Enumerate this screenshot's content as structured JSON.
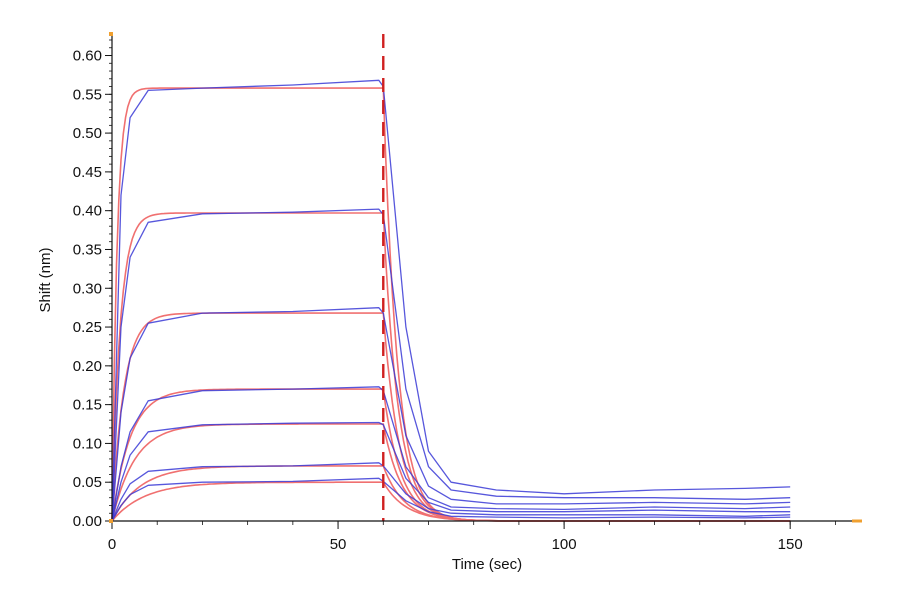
{
  "chart_data": {
    "type": "line",
    "title": "",
    "xlabel": "Time (sec)",
    "ylabel": "Shift (nm)",
    "xlim": [
      0,
      165
    ],
    "ylim": [
      0,
      0.62
    ],
    "x_ticks": [
      0,
      50,
      100,
      150
    ],
    "y_ticks": [
      0.0,
      0.05,
      0.1,
      0.15,
      0.2,
      0.25,
      0.3,
      0.35,
      0.4,
      0.45,
      0.5,
      0.55,
      0.6
    ],
    "dissociation_start": 60,
    "colors": {
      "measured": "#3a3ad6",
      "fit": "#f07070",
      "marker": "#d02020",
      "axis": "#111111",
      "end_mark": "#f0a030"
    },
    "measured": [
      {
        "x": [
          0,
          2,
          4,
          8,
          20,
          40,
          59,
          60,
          65,
          70,
          75,
          85,
          100,
          120,
          140,
          150
        ],
        "y": [
          0,
          0.42,
          0.52,
          0.555,
          0.558,
          0.562,
          0.568,
          0.56,
          0.25,
          0.09,
          0.05,
          0.04,
          0.035,
          0.04,
          0.042,
          0.044
        ]
      },
      {
        "x": [
          0,
          2,
          4,
          8,
          20,
          40,
          59,
          60,
          65,
          70,
          75,
          85,
          100,
          120,
          140,
          150
        ],
        "y": [
          0,
          0.25,
          0.34,
          0.385,
          0.396,
          0.398,
          0.402,
          0.395,
          0.17,
          0.07,
          0.04,
          0.032,
          0.03,
          0.03,
          0.028,
          0.03
        ]
      },
      {
        "x": [
          0,
          2,
          4,
          8,
          20,
          40,
          59,
          60,
          65,
          70,
          75,
          85,
          100,
          120,
          140,
          150
        ],
        "y": [
          0,
          0.14,
          0.21,
          0.255,
          0.268,
          0.27,
          0.275,
          0.268,
          0.11,
          0.045,
          0.028,
          0.022,
          0.022,
          0.024,
          0.022,
          0.024
        ]
      },
      {
        "x": [
          0,
          2,
          4,
          8,
          20,
          40,
          59,
          60,
          65,
          70,
          75,
          85,
          100,
          120,
          140,
          150
        ],
        "y": [
          0,
          0.07,
          0.115,
          0.155,
          0.168,
          0.17,
          0.173,
          0.168,
          0.07,
          0.03,
          0.018,
          0.016,
          0.015,
          0.018,
          0.016,
          0.018
        ]
      },
      {
        "x": [
          0,
          2,
          4,
          8,
          20,
          40,
          59,
          60,
          65,
          70,
          75,
          85,
          100,
          120,
          140,
          150
        ],
        "y": [
          0,
          0.05,
          0.085,
          0.115,
          0.124,
          0.126,
          0.127,
          0.124,
          0.055,
          0.024,
          0.014,
          0.012,
          0.012,
          0.014,
          0.012,
          0.012
        ]
      },
      {
        "x": [
          0,
          2,
          4,
          8,
          20,
          40,
          59,
          60,
          65,
          70,
          75,
          85,
          100,
          120,
          140,
          150
        ],
        "y": [
          0,
          0.028,
          0.048,
          0.064,
          0.07,
          0.071,
          0.075,
          0.071,
          0.035,
          0.016,
          0.01,
          0.008,
          0.008,
          0.008,
          0.006,
          0.008
        ]
      },
      {
        "x": [
          0,
          2,
          4,
          8,
          20,
          40,
          59,
          60,
          65,
          70,
          75,
          85,
          100,
          120,
          140,
          150
        ],
        "y": [
          0,
          0.02,
          0.034,
          0.046,
          0.05,
          0.051,
          0.055,
          0.051,
          0.026,
          0.012,
          0.006,
          0.005,
          0.004,
          0.005,
          0.004,
          0.005
        ]
      }
    ],
    "fit": [
      {
        "plateau": 0.558,
        "kon": 0.9,
        "koff": 0.32
      },
      {
        "plateau": 0.397,
        "kon": 0.55,
        "koff": 0.3
      },
      {
        "plateau": 0.268,
        "kon": 0.38,
        "koff": 0.28
      },
      {
        "plateau": 0.17,
        "kon": 0.25,
        "koff": 0.26
      },
      {
        "plateau": 0.125,
        "kon": 0.2,
        "koff": 0.24
      },
      {
        "plateau": 0.071,
        "kon": 0.16,
        "koff": 0.22
      },
      {
        "plateau": 0.05,
        "kon": 0.14,
        "koff": 0.2
      }
    ]
  }
}
